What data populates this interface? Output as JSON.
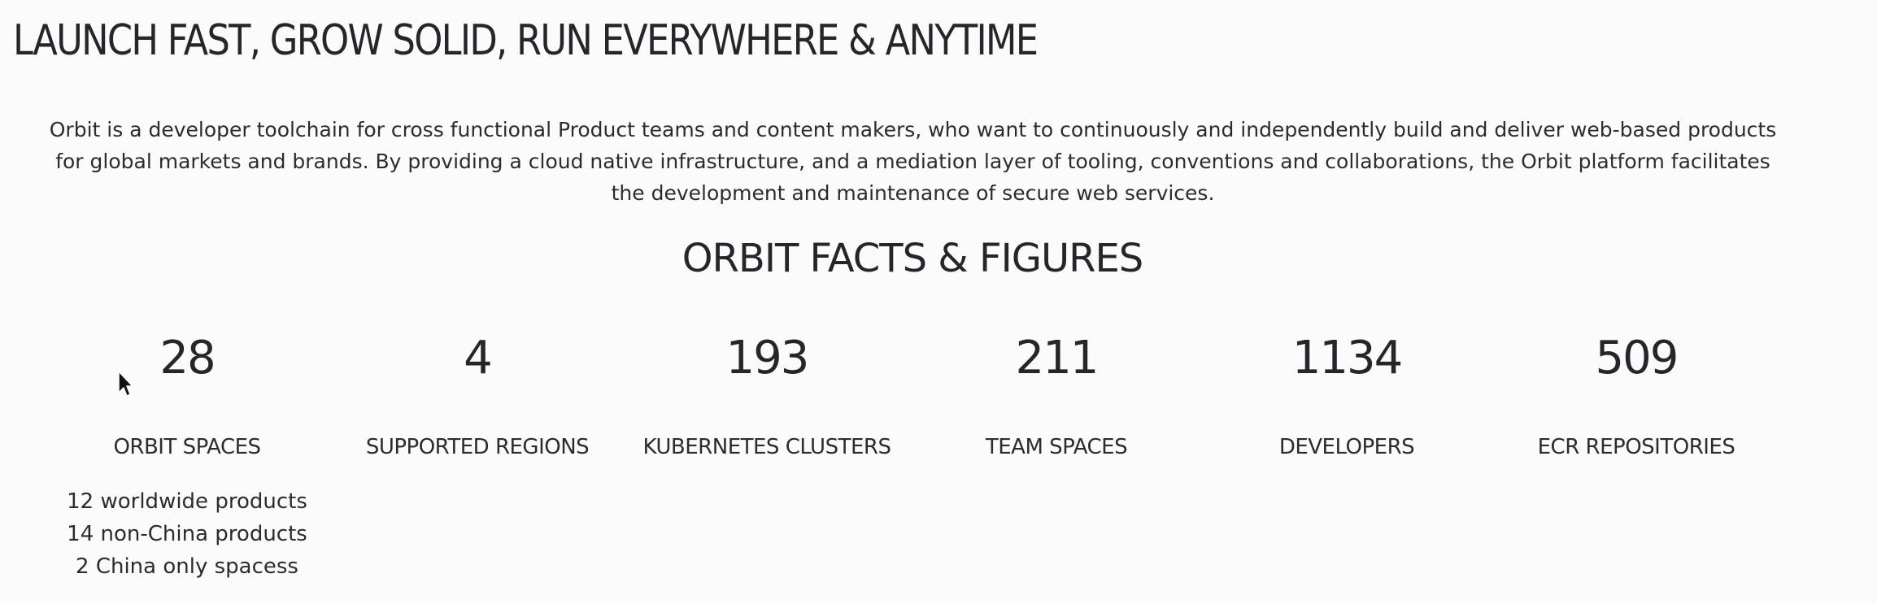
{
  "page": {
    "title": "LAUNCH FAST, GROW SOLID, RUN EVERYWHERE & ANYTIME",
    "intro": "Orbit is a developer toolchain for cross functional Product teams and content makers, who want to continuously and independently build and deliver web-based products for global markets and brands. By providing a cloud native infrastructure, and a mediation layer of tooling, conventions and collaborations, the Orbit platform facilitates the development and maintenance of secure web services.",
    "facts_title": "ORBIT FACTS & FIGURES"
  },
  "facts": [
    {
      "value": "28",
      "label": "ORBIT SPACES",
      "details": [
        "12 worldwide products",
        "14 non-China products",
        "2 China only spacess"
      ]
    },
    {
      "value": "4",
      "label": "SUPPORTED REGIONS"
    },
    {
      "value": "193",
      "label": "KUBERNETES CLUSTERS"
    },
    {
      "value": "211",
      "label": "TEAM SPACES"
    },
    {
      "value": "1134",
      "label": "DEVELOPERS"
    },
    {
      "value": "509",
      "label": "ECR REPOSITORIES"
    }
  ],
  "cursor": {
    "icon": "mouse-pointer-icon",
    "color": "#111111"
  }
}
